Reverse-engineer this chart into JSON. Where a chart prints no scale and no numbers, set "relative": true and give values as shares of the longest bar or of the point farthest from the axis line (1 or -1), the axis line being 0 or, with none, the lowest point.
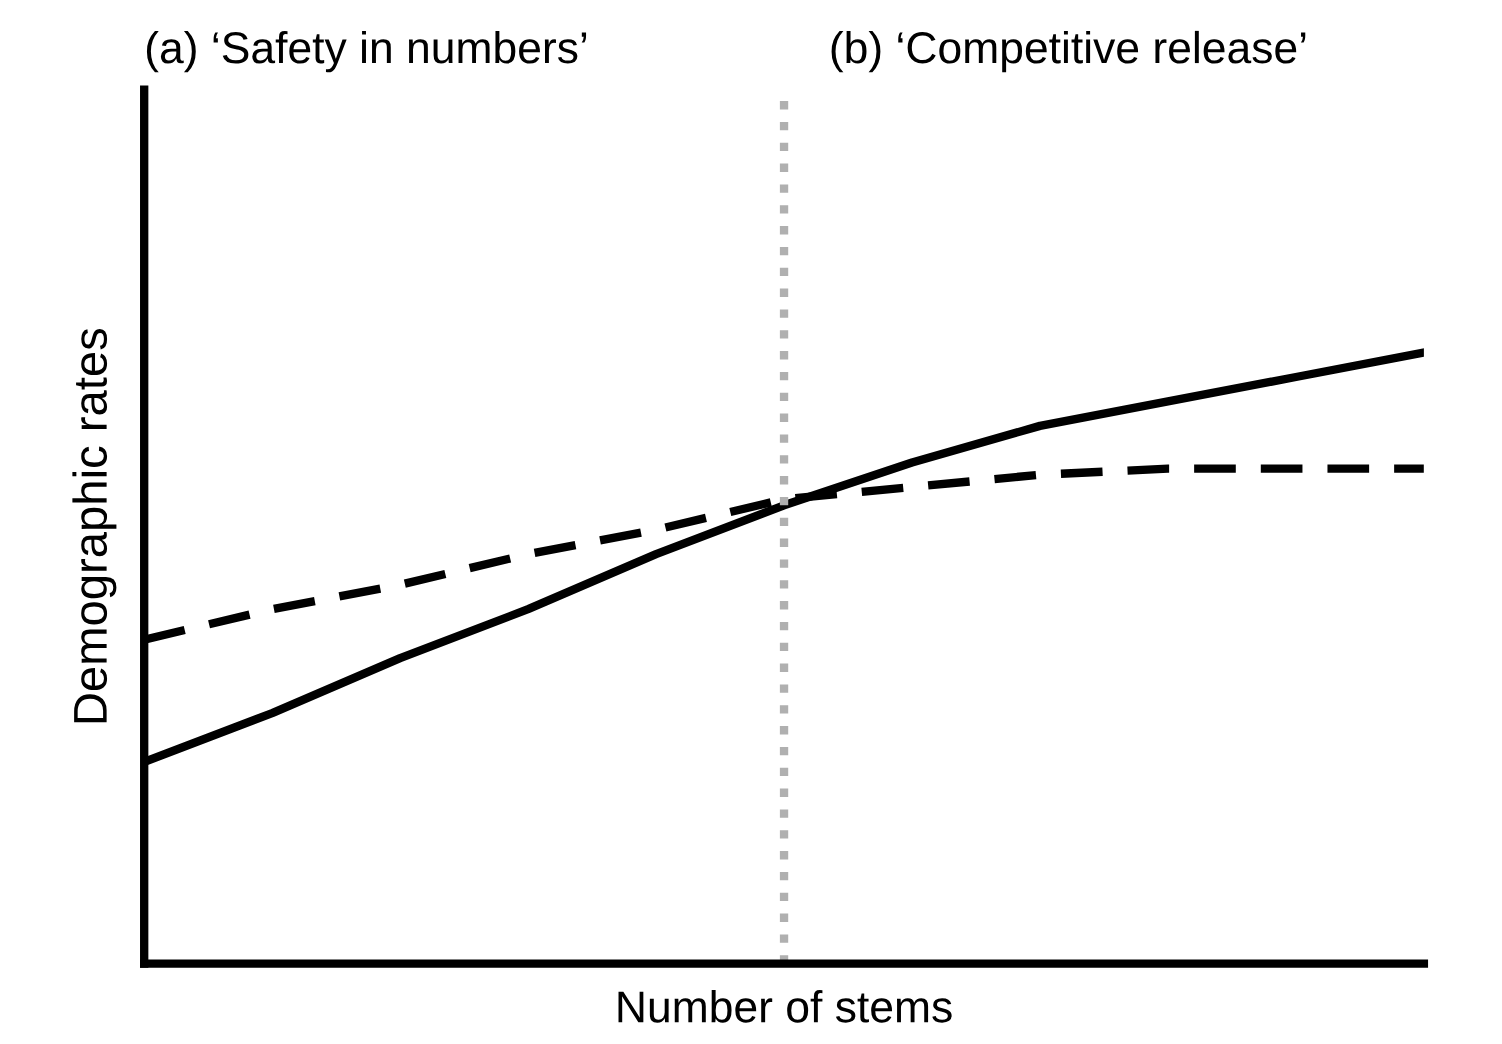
{
  "chart_data": {
    "type": "line",
    "relative": true,
    "xlabel": "Number of stems",
    "ylabel": "Demographic rates",
    "annotations": [
      "(a) ‘Safety in numbers’",
      "(b) ‘Competitive release’"
    ],
    "categories": [
      null,
      null,
      null,
      null,
      null,
      null,
      null,
      null,
      null,
      null,
      null
    ],
    "series": [
      {
        "color": "#000000",
        "line_style": "solid",
        "values": [
          0.33,
          0.41,
          0.5,
          0.58,
          0.67,
          0.75,
          0.82,
          0.88,
          0.92,
          0.96,
          1
        ]
      },
      {
        "color": "#000000",
        "line_style": "dashed",
        "values": [
          0.53,
          0.58,
          0.62,
          0.67,
          0.71,
          0.76,
          0.78,
          0.8,
          0.81,
          0.81,
          0.81
        ]
      }
    ],
    "grid": false,
    "legend": false,
    "marker": "none"
  }
}
